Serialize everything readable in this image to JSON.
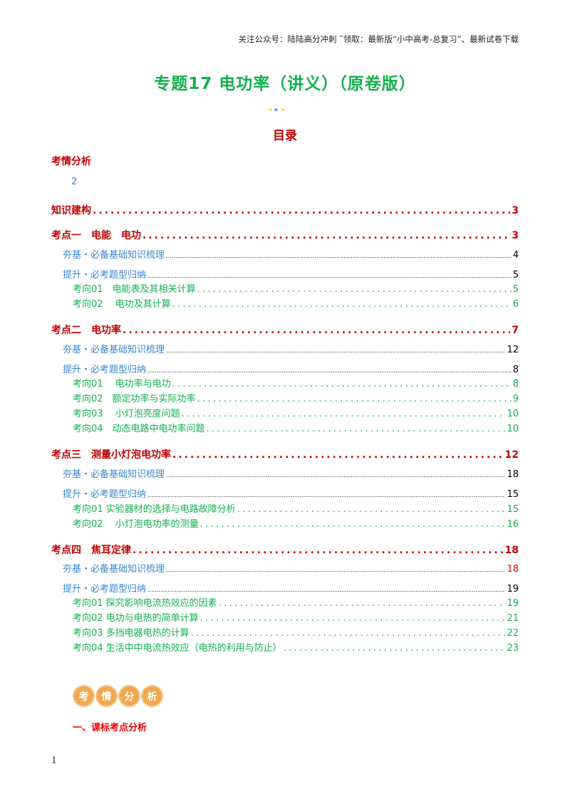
{
  "header_note": "关注公众号：陆陆高分冲刺  ˜领取：最新版“小中高考-总复习”、最新试卷下载",
  "title": "专题17   电功率（讲义）（原卷版）",
  "toc_title": "目录",
  "toc": {
    "analysis": {
      "label": "考情分析",
      "page": "2"
    },
    "knowledge": {
      "label": "知识建构",
      "page": "3"
    },
    "k1": {
      "label": "考点一　电能　电功",
      "page": "3",
      "base": {
        "label": "夯基・必备基础知识梳理",
        "page": "4"
      },
      "up": {
        "label": "提升・必考题型归纳",
        "page": "5"
      },
      "items": [
        {
          "label": "考向01　电能表及其相关计算",
          "page": "5"
        },
        {
          "label": "考向02　 电功及其计算",
          "page": "6"
        }
      ]
    },
    "k2": {
      "label": "考点二　电功率",
      "page": "7",
      "base": {
        "label": "夯基・必备基础知识梳理",
        "page": "12"
      },
      "up": {
        "label": "提升・必考题型归纳",
        "page": "8"
      },
      "items": [
        {
          "label": "考向01　 电功率与电功",
          "page": "8"
        },
        {
          "label": "考向02　额定功率与实际功率",
          "page": "9"
        },
        {
          "label": "考向03　 小灯泡亮度问题",
          "page": "10"
        },
        {
          "label": "考向04　动态电路中电功率问题",
          "page": "10"
        }
      ]
    },
    "k3": {
      "label": "考点三　测量小灯泡电功率",
      "page": "12",
      "base": {
        "label": "夯基・必备基础知识梳理",
        "page": "18"
      },
      "up": {
        "label": "提升・必考题型归纳",
        "page": "15"
      },
      "items": [
        {
          "label": "考向01 实验器材的选择与电路故障分析",
          "page": "15"
        },
        {
          "label": "考向02　 小灯泡电功率的测量",
          "page": "16"
        }
      ]
    },
    "k4": {
      "label": "考点四　焦耳定律",
      "page": "18",
      "base": {
        "label": "夯基・必备基础知识梳理",
        "page": "18"
      },
      "up": {
        "label": "提升・必考题型归纳",
        "page": "19"
      },
      "items": [
        {
          "label": "考向01 探究影响电流热效应的因素",
          "page": "19"
        },
        {
          "label": "考向02 电功与电热的简单计算",
          "page": "21"
        },
        {
          "label": "考向03 多挡电器电热的计算",
          "page": "22"
        },
        {
          "label": "考向04 生活中中电流热效应（电热的利用与防止）",
          "page": "23"
        }
      ]
    }
  },
  "badge": [
    "考",
    "情",
    "分",
    "析"
  ],
  "section_heading": "一、课标考点分析",
  "page_number": "1"
}
